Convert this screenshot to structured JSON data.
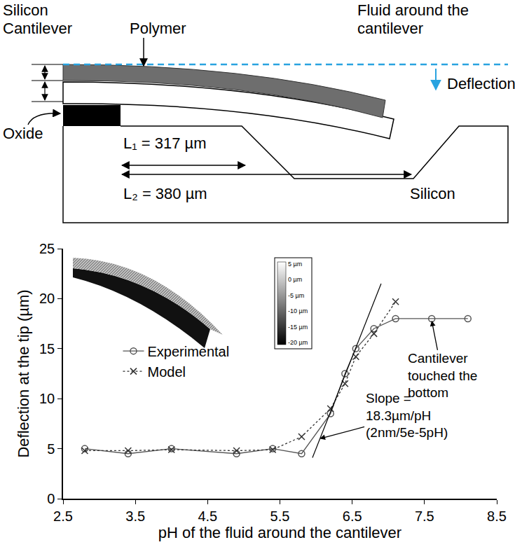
{
  "diagram": {
    "labels": {
      "silicon_cantilever": [
        "Silicon",
        "Cantilever"
      ],
      "polymer": "Polymer",
      "fluid": [
        "Fluid around the",
        "cantilever"
      ],
      "deflection": "Deflection",
      "oxide": "Oxide",
      "l1": "L₁ = 317 µm",
      "l2": "L₂ = 380 µm",
      "substrate": "Silicon"
    }
  },
  "inset": {
    "colorbar_labels": [
      "5 µm",
      "0 µm",
      "-5 µm",
      "-10 µm",
      "-15 µm",
      "-20 µm"
    ]
  },
  "chart_data": {
    "type": "line",
    "x_label": "pH of the fluid around the cantilever",
    "y_label": "Deflection at the tip (µm)",
    "xlim": [
      2.5,
      8.5
    ],
    "xticks": [
      2.5,
      3.5,
      4.5,
      5.5,
      6.5,
      7.5,
      8.5
    ],
    "ylim": [
      0,
      25
    ],
    "yticks": [
      0,
      5,
      10,
      15,
      20,
      25
    ],
    "grid": false,
    "legend": "left",
    "series": [
      {
        "name": "Experimental",
        "color": "#555555",
        "marker": "circle-open",
        "line_style": "solid",
        "x": [
          2.8,
          3.4,
          4.0,
          4.9,
          5.4,
          5.8,
          6.2,
          6.4,
          6.55,
          6.8,
          7.1,
          7.6,
          8.1
        ],
        "values": [
          5.0,
          4.5,
          5.0,
          4.5,
          5.0,
          4.5,
          8.5,
          12.5,
          15.0,
          17.0,
          18.0,
          18.0,
          18.0
        ]
      },
      {
        "name": "Model",
        "color": "#333333",
        "marker": "x",
        "line_style": "dot",
        "x": [
          2.8,
          3.4,
          4.0,
          4.9,
          5.4,
          5.8,
          6.2,
          6.4,
          6.55,
          6.8,
          7.1
        ],
        "values": [
          4.8,
          4.8,
          4.9,
          4.8,
          4.9,
          6.2,
          9.0,
          11.5,
          14.2,
          16.5,
          19.7
        ]
      }
    ],
    "tangent": {
      "x": [
        5.95,
        6.9
      ],
      "values": [
        4.1,
        21.5
      ],
      "color": "#000000"
    },
    "annotations": [
      {
        "lines": [
          "Slope =",
          "18.3µm/pH",
          "(2nm/5e-5pH)"
        ],
        "x": 6.05,
        "y": 6.0,
        "text_x": 7.25,
        "text_y": 8.3
      },
      {
        "lines": [
          "Cantilever",
          "touched the",
          "bottom"
        ],
        "x": 7.6,
        "y": 17.8,
        "text_x": 7.75,
        "text_y": 12.3
      }
    ]
  }
}
